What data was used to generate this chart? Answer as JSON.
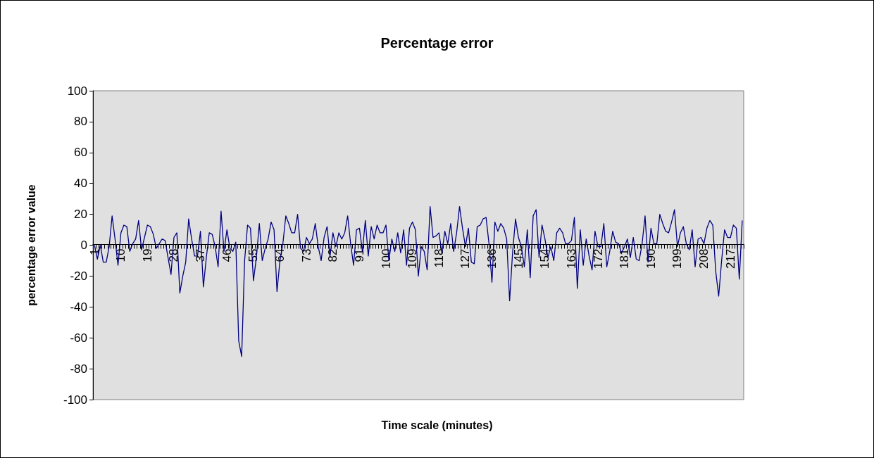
{
  "chart_data": {
    "type": "line",
    "title": "Percentage error",
    "xlabel": "Time scale (minutes)",
    "ylabel": "percentage error value",
    "categories": [
      "1",
      null,
      null,
      null,
      null,
      null,
      null,
      null,
      null,
      "10",
      null,
      null,
      null,
      null,
      null,
      null,
      null,
      null,
      "19",
      null,
      null,
      null,
      null,
      null,
      null,
      null,
      null,
      "28",
      null,
      null,
      null,
      null,
      null,
      null,
      null,
      null,
      "37",
      null,
      null,
      null,
      null,
      null,
      null,
      null,
      null,
      "46",
      null,
      null,
      null,
      null,
      null,
      null,
      null,
      null,
      "55",
      null,
      null,
      null,
      null,
      null,
      null,
      null,
      null,
      "64",
      null,
      null,
      null,
      null,
      null,
      null,
      null,
      null,
      "73",
      null,
      null,
      null,
      null,
      null,
      null,
      null,
      null,
      "82",
      null,
      null,
      null,
      null,
      null,
      null,
      null,
      null,
      "91",
      null,
      null,
      null,
      null,
      null,
      null,
      null,
      null,
      "100",
      null,
      null,
      null,
      null,
      null,
      null,
      null,
      null,
      "109",
      null,
      null,
      null,
      null,
      null,
      null,
      null,
      null,
      "118",
      null,
      null,
      null,
      null,
      null,
      null,
      null,
      null,
      "127",
      null,
      null,
      null,
      null,
      null,
      null,
      null,
      null,
      "136",
      null,
      null,
      null,
      null,
      null,
      null,
      null,
      null,
      "145",
      null,
      null,
      null,
      null,
      null,
      null,
      null,
      null,
      "154",
      null,
      null,
      null,
      null,
      null,
      null,
      null,
      null,
      "163",
      null,
      null,
      null,
      null,
      null,
      null,
      null,
      null,
      "172",
      null,
      null,
      null,
      null,
      null,
      null,
      null,
      null,
      "181",
      null,
      null,
      null,
      null,
      null,
      null,
      null,
      null,
      "190",
      null,
      null,
      null,
      null,
      null,
      null,
      null,
      null,
      "199",
      null,
      null,
      null,
      null,
      null,
      null,
      null,
      null,
      "208",
      null,
      null,
      null,
      null,
      null,
      null,
      null,
      null,
      "217",
      null,
      null,
      null,
      null
    ],
    "series": [
      {
        "color": "#000080",
        "values": [
          0,
          -9,
          0,
          -11,
          -11,
          -1,
          19,
          4,
          -13,
          8,
          13,
          12,
          -4,
          1,
          4,
          16,
          -3,
          5,
          13,
          12,
          7,
          -2,
          1,
          4,
          3,
          -8,
          -19,
          5,
          8,
          -31,
          -20,
          -11,
          17,
          4,
          -7,
          -7,
          9,
          -27,
          -8,
          8,
          7,
          -1,
          -14,
          22,
          -4,
          10,
          -2,
          -4,
          2,
          -62,
          -72,
          -10,
          13,
          11,
          -23,
          -8,
          14,
          -10,
          -2,
          4,
          15,
          10,
          -30,
          -10,
          1,
          19,
          14,
          8,
          8,
          20,
          -2,
          -4,
          5,
          1,
          4,
          14,
          -1,
          -10,
          5,
          12,
          -7,
          8,
          -1,
          8,
          4,
          8,
          19,
          1,
          -13,
          10,
          11,
          -4,
          16,
          -7,
          12,
          4,
          13,
          8,
          8,
          13,
          -10,
          4,
          -4,
          8,
          -5,
          10,
          -13,
          11,
          15,
          10,
          -20,
          -1,
          -4,
          -16,
          25,
          5,
          6,
          8,
          -5,
          9,
          1,
          14,
          -4,
          8,
          25,
          11,
          -1,
          11,
          -11,
          -12,
          12,
          13,
          17,
          18,
          1,
          -24,
          15,
          9,
          14,
          11,
          4,
          -36,
          -5,
          17,
          5,
          -1,
          -14,
          10,
          -21,
          19,
          23,
          -8,
          13,
          4,
          -8,
          -1,
          -10,
          8,
          11,
          8,
          1,
          1,
          3,
          18,
          -28,
          10,
          -13,
          4,
          -7,
          -16,
          9,
          -1,
          -1,
          14,
          -14,
          -4,
          9,
          2,
          1,
          -5,
          -1,
          4,
          -8,
          5,
          -9,
          -10,
          1,
          19,
          -11,
          11,
          1,
          1,
          20,
          14,
          9,
          8,
          15,
          23,
          -1,
          8,
          12,
          1,
          -3,
          10,
          -14,
          4,
          5,
          1,
          11,
          16,
          13,
          -17,
          -33,
          -10,
          10,
          5,
          5,
          13,
          11,
          -22,
          16
        ]
      }
    ],
    "ylim": [
      -100,
      100
    ],
    "yticks": [
      -100,
      -80,
      -60,
      -40,
      -20,
      0,
      20,
      40,
      60,
      80,
      100
    ],
    "marker": "none",
    "line_style": "solid"
  }
}
